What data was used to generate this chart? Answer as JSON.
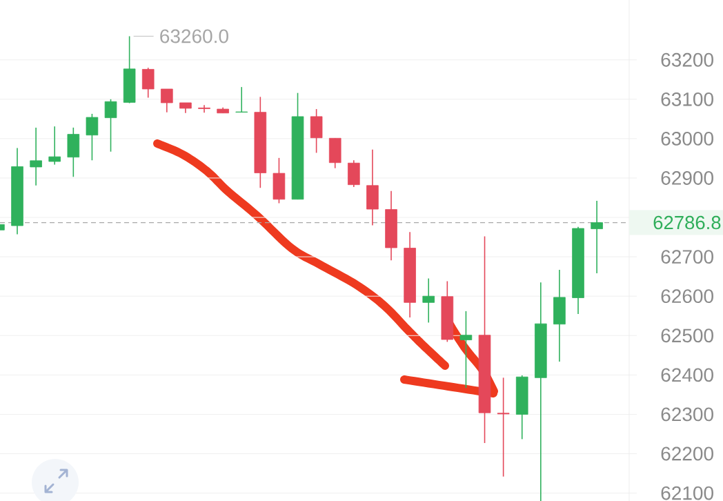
{
  "chart_data": {
    "type": "candlestick",
    "categories": [
      null,
      null,
      null,
      null,
      null,
      null,
      null,
      null,
      null,
      null,
      null,
      null,
      null,
      null,
      null,
      null,
      null,
      null,
      null,
      null,
      null,
      null,
      null,
      null,
      null,
      null,
      null,
      null,
      null,
      null,
      null,
      null,
      null
    ],
    "ohlc": [
      [
        62768,
        62782,
        62768,
        62782
      ],
      [
        62779,
        62976,
        62757,
        62929
      ],
      [
        62928,
        63028,
        62881,
        62944
      ],
      [
        62942,
        63031,
        62934,
        62954
      ],
      [
        62953,
        63028,
        62903,
        63011
      ],
      [
        63009,
        63063,
        62945,
        63054
      ],
      [
        63053,
        63100,
        62967,
        63094
      ],
      [
        63092,
        63260,
        63090,
        63177
      ],
      [
        63176,
        63180,
        63104,
        63126
      ],
      [
        63126,
        63126,
        63067,
        63091
      ],
      [
        63091,
        63091,
        63065,
        63077
      ],
      [
        63078,
        63085,
        63066,
        63076
      ],
      [
        63075,
        63079,
        63065,
        63065
      ],
      [
        63067,
        63131,
        63067,
        63068
      ],
      [
        63067,
        63106,
        62875,
        62913
      ],
      [
        62912,
        62951,
        62836,
        62846
      ],
      [
        62846,
        63116,
        62846,
        63056
      ],
      [
        63056,
        63075,
        62964,
        63002
      ],
      [
        63001,
        63001,
        62925,
        62939
      ],
      [
        62938,
        62945,
        62877,
        62883
      ],
      [
        62881,
        62972,
        62780,
        62821
      ],
      [
        62820,
        62867,
        62691,
        62723
      ],
      [
        62722,
        62763,
        62546,
        62584
      ],
      [
        62584,
        62645,
        62533,
        62600
      ],
      [
        62599,
        62638,
        62484,
        62490
      ],
      [
        62489,
        62562,
        62367,
        62501
      ],
      [
        62501,
        62752,
        62227,
        62304
      ],
      [
        62303,
        62393,
        62142,
        62301
      ],
      [
        62300,
        62399,
        62237,
        62395
      ],
      [
        62393,
        62635,
        62080,
        62530
      ],
      [
        62529,
        62667,
        62434,
        62597
      ],
      [
        62596,
        62776,
        62555,
        62772
      ],
      [
        62771,
        62842,
        62658,
        62786.8
      ]
    ],
    "colors": [
      "#2fb15c",
      "#2fb15c",
      "#2fb15c",
      "#2fb15c",
      "#2fb15c",
      "#2fb15c",
      "#2fb15c",
      "#2fb15c",
      "#e4485a",
      "#e4485a",
      "#e4485a",
      "#e4485a",
      "#e4485a",
      "#2fb15c",
      "#e4485a",
      "#e4485a",
      "#2fb15c",
      "#e4485a",
      "#e4485a",
      "#e4485a",
      "#e4485a",
      "#e4485a",
      "#e4485a",
      "#2fb15c",
      "#e4485a",
      "#2fb15c",
      "#e4485a",
      "#e4485a",
      "#2fb15c",
      "#2fb15c",
      "#2fb15c",
      "#2fb15c",
      "#2fb15c"
    ],
    "ylim": [
      62080,
      63352
    ],
    "yticks": [
      62100,
      62200,
      62300,
      62400,
      62500,
      62600,
      62700,
      {
        "value": 62800,
        "label": null
      },
      62900,
      63000,
      63100,
      63200
    ],
    "grid": "y",
    "tick_labels": "y",
    "ref_lines": [
      {
        "axis": "y",
        "value": 62786.8,
        "label": "62786.8",
        "color": "#a8a8a8",
        "line_style": "dashed"
      }
    ],
    "annotations": [
      "63260.0"
    ]
  }
}
